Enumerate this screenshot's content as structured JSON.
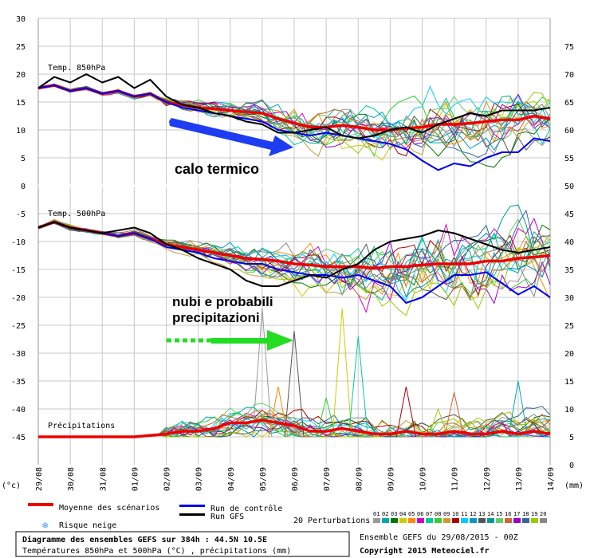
{
  "chart_data": {
    "type": "line",
    "title_box": {
      "line1": "Diagramme des ensembles GEFS sur 384h : 44.5N 10.5E",
      "line2": "Températures 850hPa et 500hPa (°C) , précipitations (mm)"
    },
    "run_info": "Ensemble GEFS du 29/08/2015 - 00Z",
    "copyright": "Copyright 2015 Meteociel.fr",
    "x": {
      "ticks": [
        "29/08",
        "30/08",
        "31/08",
        "01/09",
        "02/09",
        "03/09",
        "04/09",
        "05/09",
        "06/09",
        "07/09",
        "08/09",
        "09/09",
        "10/09",
        "11/09",
        "12/09",
        "13/09",
        "14/09"
      ],
      "range": [
        0,
        16
      ]
    },
    "left_axis": {
      "unit": "(°c)",
      "ticks": [
        "30",
        "25",
        "20",
        "15",
        "10",
        "5",
        "0",
        "-5",
        "-10",
        "-15",
        "-20",
        "-25",
        "-30",
        "-35",
        "-40",
        "-45"
      ],
      "range": [
        -50,
        30
      ]
    },
    "right_axis": {
      "unit": "(mm)",
      "ticks": [
        "75",
        "70",
        "65",
        "60",
        "55",
        "50",
        "45",
        "40",
        "35",
        "30",
        "25",
        "20",
        "15",
        "10",
        "5",
        "0"
      ],
      "range": [
        -5,
        75
      ]
    },
    "panels": {
      "t850": "Temp. 850hPa",
      "t500": "Temp. 500hPa",
      "precip": "Précipitations"
    },
    "series": [
      {
        "name": "Moyenne des scénarios",
        "color": "#ee0000",
        "panel": "t850",
        "points": [
          [
            0,
            17.5
          ],
          [
            0.5,
            18
          ],
          [
            1,
            17
          ],
          [
            1.5,
            17.5
          ],
          [
            2,
            16.5
          ],
          [
            2.5,
            17
          ],
          [
            3,
            16
          ],
          [
            3.5,
            16.5
          ],
          [
            4,
            15
          ],
          [
            4.5,
            14.5
          ],
          [
            5,
            14
          ],
          [
            5.5,
            13.8
          ],
          [
            6,
            13.5
          ],
          [
            6.5,
            13.2
          ],
          [
            7,
            13
          ],
          [
            7.5,
            12
          ],
          [
            8,
            11.2
          ],
          [
            8.5,
            10.5
          ],
          [
            9,
            10.5
          ],
          [
            9.5,
            10.8
          ],
          [
            10,
            10.5
          ],
          [
            10.5,
            10
          ],
          [
            11,
            10
          ],
          [
            11.5,
            10.3
          ],
          [
            12,
            10.5
          ],
          [
            12.5,
            11
          ],
          [
            13,
            11
          ],
          [
            13.5,
            11.2
          ],
          [
            14,
            11.5
          ],
          [
            14.5,
            11.8
          ],
          [
            15,
            11.8
          ],
          [
            15.5,
            12.5
          ],
          [
            16,
            12
          ]
        ]
      },
      {
        "name": "Run de contrôle",
        "color": "#0000ee",
        "panel": "t850",
        "points": [
          [
            0,
            17.5
          ],
          [
            0.5,
            18
          ],
          [
            1,
            17
          ],
          [
            1.5,
            17.5
          ],
          [
            2,
            16.5
          ],
          [
            2.5,
            17
          ],
          [
            3,
            16
          ],
          [
            3.5,
            16.5
          ],
          [
            4,
            15
          ],
          [
            4.5,
            14
          ],
          [
            5,
            13.5
          ],
          [
            5.5,
            13
          ],
          [
            6,
            12.5
          ],
          [
            6.5,
            12
          ],
          [
            7,
            11.5
          ],
          [
            7.5,
            10
          ],
          [
            8,
            9.5
          ],
          [
            8.5,
            9
          ],
          [
            9,
            9.5
          ],
          [
            9.5,
            9
          ],
          [
            10,
            8.5
          ],
          [
            10.5,
            8
          ],
          [
            11,
            7.5
          ],
          [
            11.5,
            6.5
          ],
          [
            12,
            4.5
          ],
          [
            12.5,
            2.8
          ],
          [
            13,
            4
          ],
          [
            13.5,
            3.5
          ],
          [
            14,
            5
          ],
          [
            14.5,
            6
          ],
          [
            15,
            6
          ],
          [
            15.5,
            8.5
          ],
          [
            16,
            8
          ]
        ]
      },
      {
        "name": "Run GFS",
        "color": "#000000",
        "panel": "t850",
        "points": [
          [
            0,
            17.5
          ],
          [
            0.5,
            19.5
          ],
          [
            1,
            18.5
          ],
          [
            1.5,
            20
          ],
          [
            2,
            18.5
          ],
          [
            2.5,
            19.5
          ],
          [
            3,
            17.5
          ],
          [
            3.5,
            19
          ],
          [
            4,
            16
          ],
          [
            4.5,
            14.5
          ],
          [
            5,
            14
          ],
          [
            5.5,
            13
          ],
          [
            6,
            12.5
          ],
          [
            6.5,
            11.5
          ],
          [
            7,
            11
          ],
          [
            7.5,
            9.5
          ],
          [
            8,
            9.5
          ],
          [
            8.5,
            10
          ],
          [
            9,
            10.5
          ],
          [
            9.5,
            9
          ],
          [
            10,
            8.5
          ],
          [
            10.5,
            9
          ],
          [
            11,
            10
          ],
          [
            11.5,
            10.5
          ],
          [
            12,
            9.5
          ],
          [
            12.5,
            11
          ],
          [
            13,
            12
          ],
          [
            13.5,
            13
          ],
          [
            14,
            12.5
          ],
          [
            14.5,
            13.5
          ],
          [
            15,
            13.5
          ],
          [
            15.5,
            13.5
          ],
          [
            16,
            14
          ]
        ]
      },
      {
        "name": "Moyenne des scénarios",
        "color": "#ee0000",
        "panel": "t500",
        "points": [
          [
            0,
            -7.5
          ],
          [
            0.5,
            -6.5
          ],
          [
            1,
            -7.5
          ],
          [
            1.5,
            -8
          ],
          [
            2,
            -8.5
          ],
          [
            2.5,
            -9
          ],
          [
            3,
            -8.5
          ],
          [
            3.5,
            -9.5
          ],
          [
            4,
            -10.5
          ],
          [
            4.5,
            -11
          ],
          [
            5,
            -11.5
          ],
          [
            5.5,
            -12
          ],
          [
            6,
            -12.5
          ],
          [
            6.5,
            -13
          ],
          [
            7,
            -13.2
          ],
          [
            7.5,
            -13.5
          ],
          [
            8,
            -14
          ],
          [
            8.5,
            -14.2
          ],
          [
            9,
            -14.5
          ],
          [
            9.5,
            -14.5
          ],
          [
            10,
            -14.5
          ],
          [
            10.5,
            -14.8
          ],
          [
            11,
            -14.5
          ],
          [
            11.5,
            -14.5
          ],
          [
            12,
            -14.2
          ],
          [
            12.5,
            -14
          ],
          [
            13,
            -14
          ],
          [
            13.5,
            -14
          ],
          [
            14,
            -13.5
          ],
          [
            14.5,
            -13.5
          ],
          [
            15,
            -13
          ],
          [
            15.5,
            -12.8
          ],
          [
            16,
            -12.5
          ]
        ]
      },
      {
        "name": "Run de contrôle",
        "color": "#0000ee",
        "panel": "t500",
        "points": [
          [
            0,
            -7.5
          ],
          [
            0.5,
            -6.5
          ],
          [
            1,
            -7.5
          ],
          [
            1.5,
            -8
          ],
          [
            2,
            -8.5
          ],
          [
            2.5,
            -9
          ],
          [
            3,
            -8.5
          ],
          [
            3.5,
            -9.5
          ],
          [
            4,
            -11
          ],
          [
            4.5,
            -11.5
          ],
          [
            5,
            -12
          ],
          [
            5.5,
            -13
          ],
          [
            6,
            -13.5
          ],
          [
            6.5,
            -14
          ],
          [
            7,
            -14
          ],
          [
            7.5,
            -15
          ],
          [
            8,
            -15.5
          ],
          [
            8.5,
            -16
          ],
          [
            9,
            -16
          ],
          [
            9.5,
            -16.5
          ],
          [
            10,
            -16
          ],
          [
            10.5,
            -17
          ],
          [
            11,
            -18
          ],
          [
            11.5,
            -21
          ],
          [
            12,
            -20
          ],
          [
            12.5,
            -18
          ],
          [
            13,
            -16
          ],
          [
            13.5,
            -16
          ],
          [
            14,
            -15.5
          ],
          [
            14.5,
            -17.5
          ],
          [
            15,
            -19.5
          ],
          [
            15.5,
            -18
          ],
          [
            16,
            -20
          ]
        ]
      },
      {
        "name": "Run GFS",
        "color": "#000000",
        "panel": "t500",
        "points": [
          [
            0,
            -7.5
          ],
          [
            0.5,
            -6.5
          ],
          [
            1,
            -7.5
          ],
          [
            1.5,
            -8
          ],
          [
            2,
            -8.5
          ],
          [
            2.5,
            -8
          ],
          [
            3,
            -7.5
          ],
          [
            3.5,
            -8.5
          ],
          [
            4,
            -10.5
          ],
          [
            4.5,
            -11.5
          ],
          [
            5,
            -13
          ],
          [
            5.5,
            -14
          ],
          [
            6,
            -15
          ],
          [
            6.5,
            -17
          ],
          [
            7,
            -18
          ],
          [
            7.5,
            -18
          ],
          [
            8,
            -17
          ],
          [
            8.5,
            -16
          ],
          [
            9,
            -16.5
          ],
          [
            9.5,
            -15
          ],
          [
            10,
            -14
          ],
          [
            10.5,
            -11.5
          ],
          [
            11,
            -10
          ],
          [
            11.5,
            -9.5
          ],
          [
            12,
            -9
          ],
          [
            12.5,
            -8
          ],
          [
            13,
            -8.5
          ],
          [
            13.5,
            -9.5
          ],
          [
            14,
            -10.5
          ],
          [
            14.5,
            -11.5
          ],
          [
            15,
            -12
          ],
          [
            15.5,
            -11.5
          ],
          [
            16,
            -11
          ]
        ]
      },
      {
        "name": "Moyenne des scénarios",
        "color": "#ee0000",
        "panel": "precip",
        "points": [
          [
            0,
            -45
          ],
          [
            1,
            -45
          ],
          [
            2,
            -45
          ],
          [
            3,
            -45
          ],
          [
            4,
            -44.5
          ],
          [
            4.5,
            -44
          ],
          [
            5,
            -44
          ],
          [
            5.5,
            -43.5
          ],
          [
            6,
            -42.5
          ],
          [
            6.5,
            -42.5
          ],
          [
            7,
            -42
          ],
          [
            7.5,
            -42.5
          ],
          [
            8,
            -43
          ],
          [
            8.5,
            -44
          ],
          [
            9,
            -44
          ],
          [
            9.5,
            -43.5
          ],
          [
            10,
            -44
          ],
          [
            10.5,
            -44.5
          ],
          [
            11,
            -44.5
          ],
          [
            11.5,
            -44
          ],
          [
            12,
            -44.5
          ],
          [
            12.5,
            -44.5
          ],
          [
            13,
            -44
          ],
          [
            13.5,
            -44.5
          ],
          [
            14,
            -44.5
          ],
          [
            14.5,
            -44
          ],
          [
            15,
            -44.5
          ],
          [
            15.5,
            -44
          ],
          [
            16,
            -44.5
          ]
        ]
      }
    ],
    "perturbations": {
      "label": "20 Perturbations",
      "codes": [
        "01",
        "02",
        "03",
        "04",
        "05",
        "06",
        "07",
        "08",
        "09",
        "10",
        "11",
        "12",
        "13",
        "14",
        "15",
        "16",
        "17",
        "18",
        "19",
        "20"
      ],
      "colors": [
        "#999999",
        "#00aaaa",
        "#007700",
        "#cccc00",
        "#ff8800",
        "#cc00cc",
        "#00cc99",
        "#33cc33",
        "#cc9933",
        "#aa0000",
        "#00ccff",
        "#0099cc",
        "#555555",
        "#009999",
        "#66cc66",
        "#cc6633",
        "#9900cc",
        "#336699",
        "#99cc00",
        "#888888"
      ],
      "peaks": [
        [
          7,
          -22
        ],
        [
          9.5,
          -22
        ],
        [
          10,
          -27
        ],
        [
          11.5,
          -36
        ],
        [
          8,
          -26
        ],
        [
          13,
          -37
        ],
        [
          12.5,
          -40
        ],
        [
          15,
          -35
        ],
        [
          7.5,
          -36
        ],
        [
          9,
          -38
        ]
      ]
    },
    "legend": {
      "mean": "Moyenne des scénarios",
      "control": "Run de contrôle",
      "gfs": "Run GFS",
      "snow": "Risque neige"
    },
    "annotations": {
      "heat": "calo termico",
      "clouds_line1": "nubi e probabili",
      "clouds_line2": "precipitazioni"
    }
  }
}
